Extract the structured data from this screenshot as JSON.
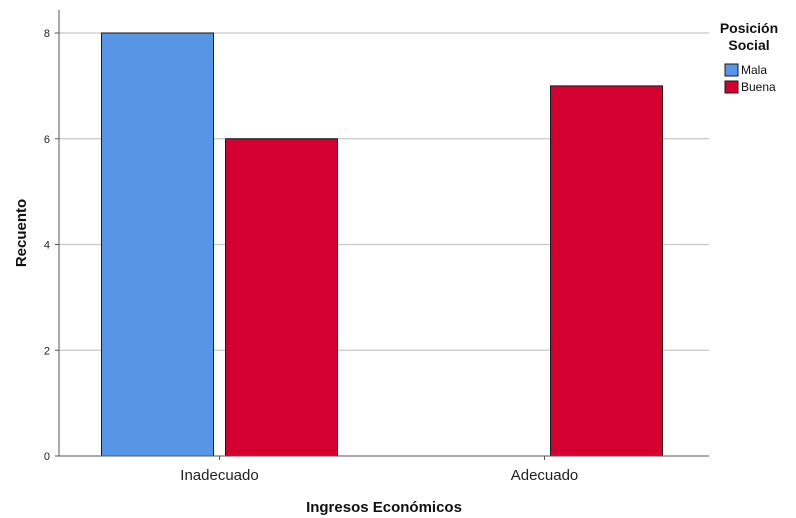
{
  "chart_data": {
    "type": "bar",
    "categories": [
      "Inadecuado",
      "Adecuado"
    ],
    "series": [
      {
        "name": "Mala",
        "values": [
          8,
          0
        ],
        "color": "#5796e6"
      },
      {
        "name": "Buena",
        "values": [
          6,
          7
        ],
        "color": "#d4002f"
      }
    ],
    "xlabel": "Ingresos Económicos",
    "ylabel": "Recuento",
    "ylim": [
      0,
      8
    ],
    "yticks": [
      0,
      2,
      4,
      6,
      8
    ],
    "grid": true,
    "legend": {
      "title_line1": "Posición",
      "title_line2": "Social",
      "placement": "top-right"
    }
  }
}
